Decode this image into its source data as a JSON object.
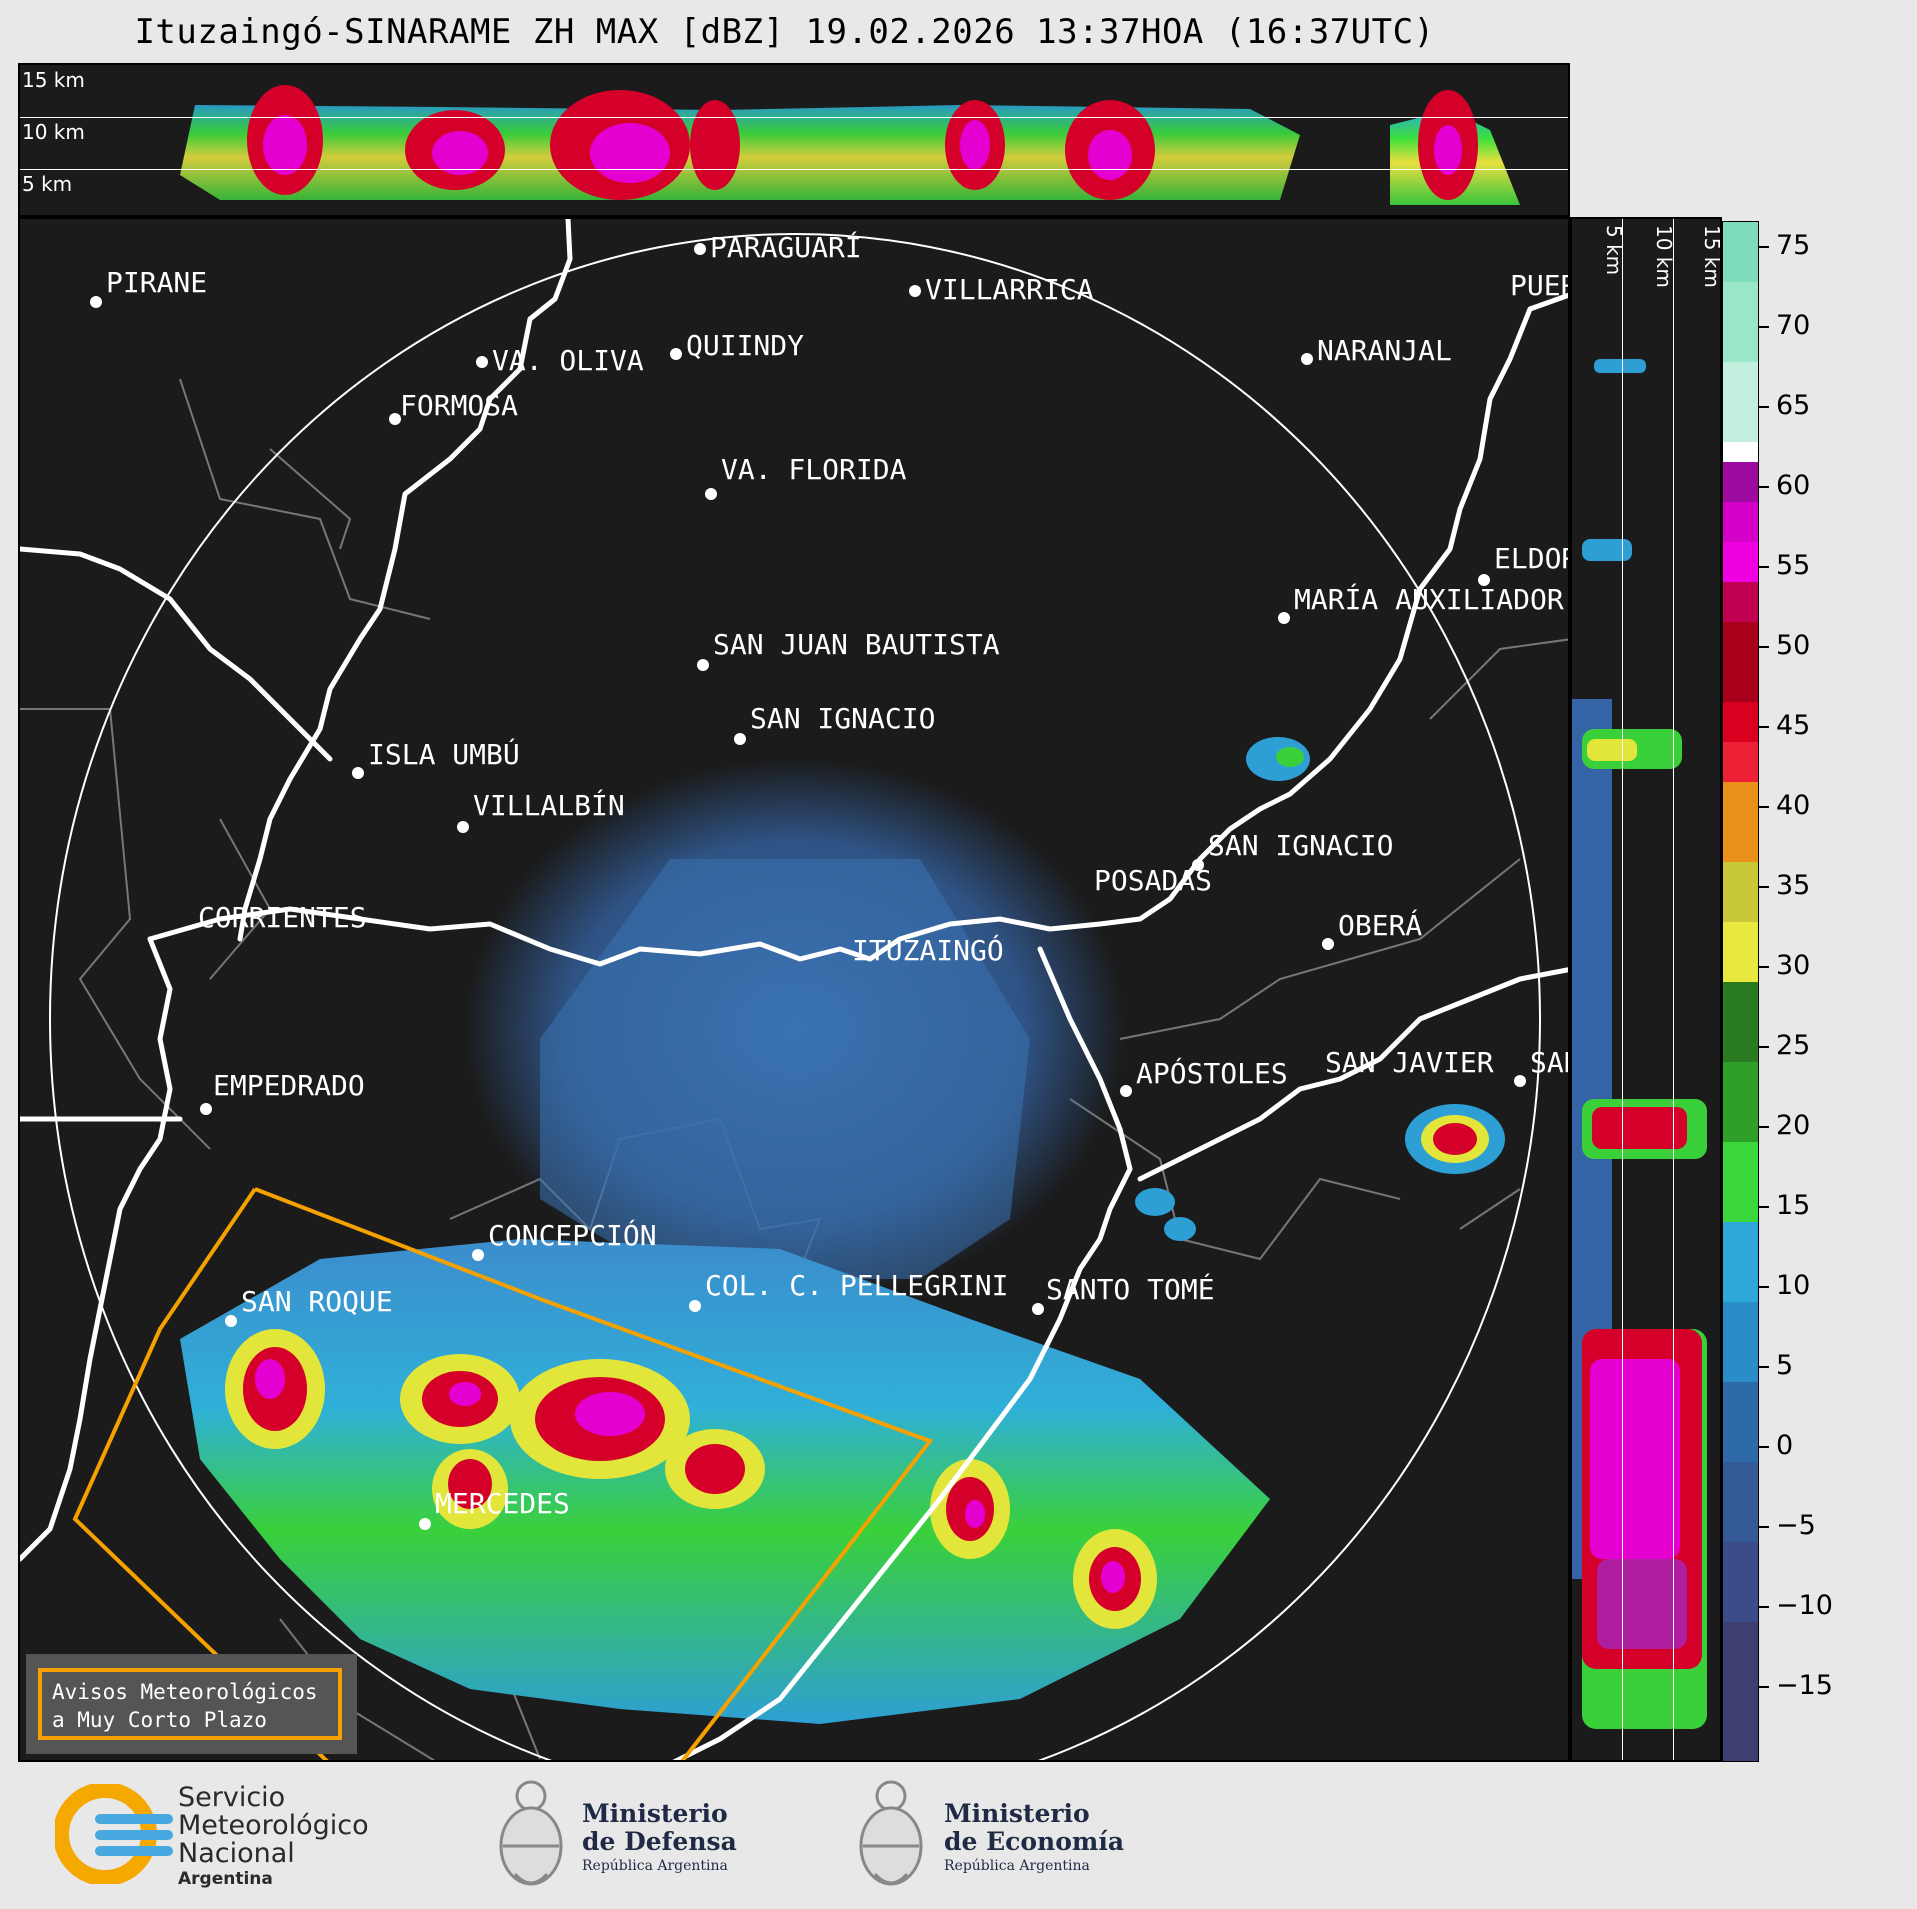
{
  "title": "Ituzaingó-SINARAME ZH MAX [dBZ] 19.02.2026 13:37HOA (16:37UTC)",
  "top_panel": {
    "labels": [
      "15 km",
      "10 km",
      "5 km"
    ]
  },
  "right_panel": {
    "labels": [
      "5 km",
      "10 km",
      "15 km"
    ]
  },
  "colorbar": {
    "unit": "dBZ",
    "ticks": [
      "75",
      "70",
      "65",
      "60",
      "55",
      "50",
      "45",
      "40",
      "35",
      "30",
      "25",
      "20",
      "15",
      "10",
      "5",
      "0",
      "−5",
      "−10",
      "−15"
    ],
    "range": [
      -20,
      77
    ]
  },
  "cities": [
    {
      "name": "PARAGUARÍ"
    },
    {
      "name": "VILLARRICA"
    },
    {
      "name": "PIRANE"
    },
    {
      "name": "VA. OLIVA"
    },
    {
      "name": "QUIINDY"
    },
    {
      "name": "NARANJAL"
    },
    {
      "name": "FORMOSA"
    },
    {
      "name": "VA. FLORIDA"
    },
    {
      "name": "ELDOR"
    },
    {
      "name": "MARÍA AUXILIADOR"
    },
    {
      "name": "SAN JUAN BAUTISTA"
    },
    {
      "name": "SAN IGNACIO"
    },
    {
      "name": "ISLA UMBÚ"
    },
    {
      "name": "VILLALBÍN"
    },
    {
      "name": "SAN IGNACIO"
    },
    {
      "name": "POSADAS"
    },
    {
      "name": "CORRIENTES"
    },
    {
      "name": "ITUZAINGÓ"
    },
    {
      "name": "OBERÁ"
    },
    {
      "name": "EMPEDRADO"
    },
    {
      "name": "APÓSTOLES"
    },
    {
      "name": "SAN JAVIER"
    },
    {
      "name": "SAN"
    },
    {
      "name": "CONCEPCIÓN"
    },
    {
      "name": "COL. C. PELLEGRINI"
    },
    {
      "name": "SAN ROQUE"
    },
    {
      "name": "SANTO TOMÉ"
    },
    {
      "name": "MERCEDES"
    },
    {
      "name": "PUER"
    }
  ],
  "avisos": {
    "line1": "Avisos Meteorológicos",
    "line2": "a Muy Corto Plazo"
  },
  "footer": {
    "smn": {
      "line1": "Servicio",
      "line2": "Meteorológico",
      "line3": "Nacional",
      "line4": "Argentina"
    },
    "defensa": {
      "line1": "Ministerio",
      "line2": "de Defensa",
      "line3": "República Argentina"
    },
    "economia": {
      "line1": "Ministerio",
      "line2": "de Economía",
      "line3": "República Argentina"
    }
  }
}
